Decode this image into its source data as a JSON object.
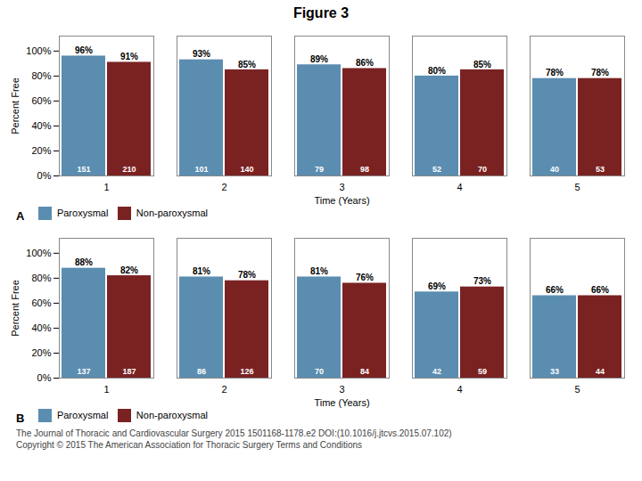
{
  "title": "Figure 3",
  "annotations": [
    "The Journal of Thoracic and Cardiovascular Surgery 2015 1501168-1178.e2 DOI:(10.1016/j.jtcvs.2015.07.102)",
    "Copyright © 2015 The American Association for Thoracic Surgery  Terms and Conditions"
  ],
  "chart_data": [
    {
      "type": "bar",
      "title": "A",
      "xlabel": "Time (Years)",
      "ylabel": "Percent Free",
      "categories": [
        "1",
        "2",
        "3",
        "4",
        "5"
      ],
      "series": [
        {
          "name": "Paroxysmal",
          "color": "#5b8db0",
          "values": [
            96,
            93,
            89,
            80,
            78
          ],
          "value_labels": [
            "96%",
            "93%",
            "89%",
            "80%",
            "78%"
          ],
          "counts": [
            151,
            101,
            79,
            52,
            40
          ]
        },
        {
          "name": "Non-paroxysmal",
          "color": "#7a2222",
          "values": [
            91,
            85,
            86,
            85,
            78
          ],
          "value_labels": [
            "91%",
            "85%",
            "86%",
            "85%",
            "78%"
          ],
          "counts": [
            210,
            140,
            98,
            70,
            53
          ]
        }
      ],
      "ylim": [
        0,
        112
      ],
      "yticks": [
        {
          "value": 0,
          "label": "0%"
        },
        {
          "value": 20,
          "label": "20%"
        },
        {
          "value": 40,
          "label": "40%"
        },
        {
          "value": 60,
          "label": "60%"
        },
        {
          "value": 80,
          "label": "80%"
        },
        {
          "value": 100,
          "label": "100%"
        }
      ],
      "grid": false,
      "legend": "bottom",
      "data_labels": true
    },
    {
      "type": "bar",
      "title": "B",
      "xlabel": "Time (Years)",
      "ylabel": "Percent Free",
      "categories": [
        "1",
        "2",
        "3",
        "4",
        "5"
      ],
      "series": [
        {
          "name": "Paroxysmal",
          "color": "#5b8db0",
          "values": [
            88,
            81,
            81,
            69,
            66
          ],
          "value_labels": [
            "88%",
            "81%",
            "81%",
            "69%",
            "66%"
          ],
          "counts": [
            137,
            86,
            70,
            42,
            33
          ]
        },
        {
          "name": "Non-paroxysmal",
          "color": "#7a2222",
          "values": [
            82,
            78,
            76,
            73,
            66
          ],
          "value_labels": [
            "82%",
            "78%",
            "76%",
            "73%",
            "66%"
          ],
          "counts": [
            187,
            126,
            84,
            59,
            44
          ]
        }
      ],
      "ylim": [
        0,
        112
      ],
      "yticks": [
        {
          "value": 0,
          "label": "0%"
        },
        {
          "value": 20,
          "label": "20%"
        },
        {
          "value": 40,
          "label": "40%"
        },
        {
          "value": 60,
          "label": "60%"
        },
        {
          "value": 80,
          "label": "80%"
        },
        {
          "value": 100,
          "label": "100%"
        }
      ],
      "grid": false,
      "legend": "bottom",
      "data_labels": true
    }
  ]
}
